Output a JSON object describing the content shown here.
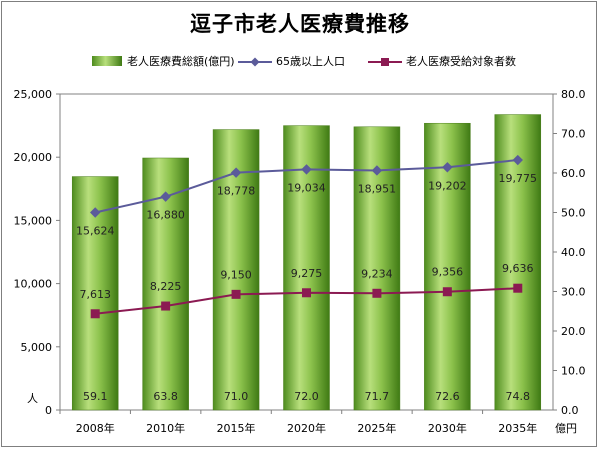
{
  "chart_data": {
    "type": "bar",
    "title": "逗子市老人医療費推移",
    "categories": [
      "2008年",
      "2010年",
      "2015年",
      "2020年",
      "2025年",
      "2030年",
      "2035年"
    ],
    "series": [
      {
        "name": "老人医療費総額(億円)",
        "type": "bar",
        "axis": "right",
        "values": [
          59.1,
          63.8,
          71.0,
          72.0,
          71.7,
          72.6,
          74.8
        ],
        "labels": [
          "59.1",
          "63.8",
          "71.0",
          "72.0",
          "71.7",
          "72.6",
          "74.8"
        ],
        "color": "#6aaa2a"
      },
      {
        "name": "65歳以上人口",
        "type": "line",
        "axis": "left",
        "values": [
          15624,
          16880,
          18778,
          19034,
          18951,
          19202,
          19775
        ],
        "labels": [
          "15,624",
          "16,880",
          "18,778",
          "19,034",
          "18,951",
          "19,202",
          "19,775"
        ],
        "color": "#5b5b9a"
      },
      {
        "name": "老人医療受給対象者数",
        "type": "line",
        "axis": "left",
        "values": [
          7613,
          8225,
          9150,
          9275,
          9234,
          9356,
          9636
        ],
        "labels": [
          "7,613",
          "8,225",
          "9,150",
          "9,275",
          "9,234",
          "9,356",
          "9,636"
        ],
        "color": "#8b1a52"
      }
    ],
    "left_axis": {
      "unit": "人",
      "range": [
        0,
        25000
      ],
      "ticks": [
        "0",
        "5,000",
        "10,000",
        "15,000",
        "20,000",
        "25,000"
      ]
    },
    "right_axis": {
      "unit": "億円",
      "range": [
        0,
        80
      ],
      "ticks": [
        "0.0",
        "10.0",
        "20.0",
        "30.0",
        "40.0",
        "50.0",
        "60.0",
        "70.0",
        "80.0"
      ]
    },
    "grid": false,
    "legend": "top"
  }
}
